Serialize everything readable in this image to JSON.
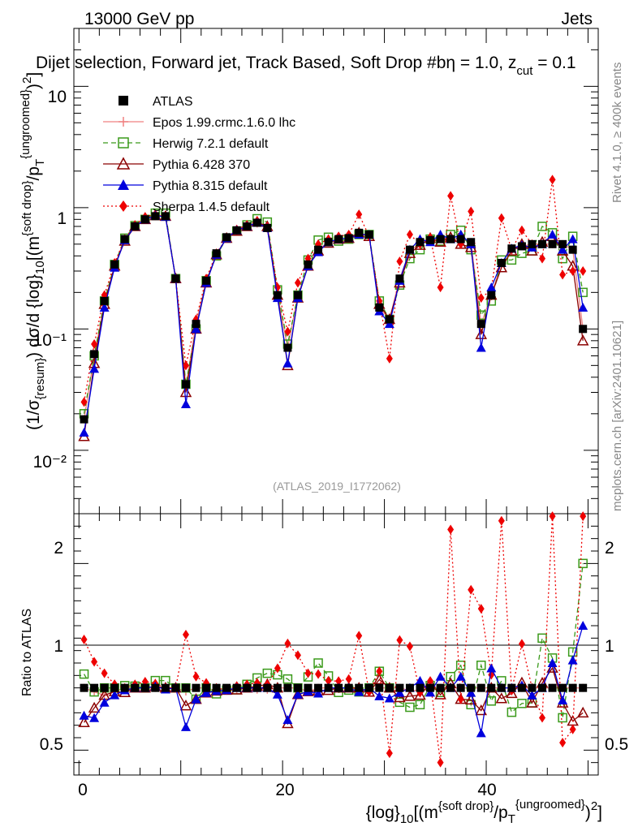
{
  "header": {
    "energy": "13000 GeV pp",
    "process": "Jets",
    "title": "Dijet selection, Forward jet, Track Based, Soft Drop #b",
    "title_tail": "η = 1.0, z",
    "title_sub": "cut",
    "title_end": " = 0.1"
  },
  "side": {
    "rivet": "Rivet 4.1.0, ≥ 400k events",
    "mcplots": "mcplots.cern.ch [arXiv:2401.10621]"
  },
  "analysis_id": "(ATLAS_2019_I1772062)",
  "axes": {
    "y_main": "(1/σ{resum}) dσ/d {log}10[(m{soft drop}/pT{ungroomed})²]",
    "y_ratio": "Ratio to ATLAS",
    "x": "{log}10[(m{soft drop}/pT{ungroomed})²]"
  },
  "legend": [
    {
      "label": "ATLAS",
      "color": "#000000",
      "marker": "square-filled",
      "line": "none"
    },
    {
      "label": "Epos 1.99.crmc.1.6.0 lhc",
      "color": "#f08080",
      "marker": "cross",
      "line": "solid"
    },
    {
      "label": "Herwig 7.2.1 default",
      "color": "#3a9a1a",
      "marker": "square-open",
      "line": "dashed"
    },
    {
      "label": "Pythia 6.428 370",
      "color": "#8b0000",
      "marker": "triangle-open",
      "line": "solid"
    },
    {
      "label": "Pythia 8.315 default",
      "color": "#0000dd",
      "marker": "triangle-filled",
      "line": "solid"
    },
    {
      "label": "Sherpa 1.4.5 default",
      "color": "#ee0000",
      "marker": "diamond",
      "line": "dotted"
    }
  ],
  "chart_data": {
    "type": "line",
    "x_range": [
      -0.5,
      51
    ],
    "y_range_main_log": [
      0.003,
      30
    ],
    "y_range_ratio": [
      0.3,
      2.4
    ],
    "x_ticks": [
      "0",
      "20",
      "40"
    ],
    "y_ticks_main": [
      "10⁻²",
      "10⁻¹",
      "1",
      "10"
    ],
    "y_ticks_ratio": [
      "0.5",
      "1",
      "2"
    ],
    "x": [
      0.5,
      1.5,
      2.5,
      3.5,
      4.5,
      5.5,
      6.5,
      7.5,
      8.5,
      9.5,
      10.5,
      11.5,
      12.5,
      13.5,
      14.5,
      15.5,
      16.5,
      17.5,
      18.5,
      19.5,
      20.5,
      21.5,
      22.5,
      23.5,
      24.5,
      25.5,
      26.5,
      27.5,
      28.5,
      29.5,
      30.5,
      31.5,
      32.5,
      33.5,
      34.5,
      35.5,
      36.5,
      37.5,
      38.5,
      39.5,
      40.5,
      41.5,
      42.5,
      43.5,
      44.5,
      45.5,
      46.5,
      47.5,
      48.5,
      49.5
    ],
    "series": [
      {
        "name": "ATLAS",
        "values": [
          0.018,
          0.062,
          0.17,
          0.34,
          0.55,
          0.7,
          0.8,
          0.85,
          0.85,
          0.26,
          0.035,
          0.11,
          0.25,
          0.42,
          0.57,
          0.65,
          0.7,
          0.75,
          0.68,
          0.19,
          0.07,
          0.19,
          0.34,
          0.45,
          0.52,
          0.55,
          0.56,
          0.62,
          0.6,
          0.15,
          0.12,
          0.26,
          0.45,
          0.52,
          0.54,
          0.55,
          0.55,
          0.55,
          0.52,
          0.11,
          0.19,
          0.35,
          0.46,
          0.48,
          0.5,
          0.5,
          0.5,
          0.5,
          0.45,
          0.1
        ]
      },
      {
        "name": "Epos 1.99.crmc.1.6.0 lhc",
        "values": [
          0.018,
          0.06,
          0.16,
          0.33,
          0.55,
          0.7,
          0.8,
          0.85,
          0.85,
          0.26,
          0.034,
          0.11,
          0.25,
          0.41,
          0.56,
          0.64,
          0.7,
          0.74,
          0.67,
          0.19,
          0.07,
          0.19,
          0.33,
          0.45,
          0.52,
          0.55,
          0.56,
          0.61,
          0.59,
          0.15,
          0.12,
          0.26,
          0.44,
          0.51,
          0.53,
          0.55,
          0.55,
          0.55,
          0.52,
          0.11,
          0.19,
          0.35,
          0.46,
          0.48,
          0.5,
          0.5,
          0.5,
          0.5,
          0.45,
          0.1
        ]
      },
      {
        "name": "Herwig 7.2.1 default",
        "values": [
          0.02,
          0.06,
          0.17,
          0.34,
          0.56,
          0.71,
          0.8,
          0.9,
          0.9,
          0.26,
          0.035,
          0.1,
          0.25,
          0.4,
          0.56,
          0.64,
          0.72,
          0.81,
          0.76,
          0.21,
          0.075,
          0.19,
          0.37,
          0.54,
          0.57,
          0.53,
          0.55,
          0.6,
          0.6,
          0.17,
          0.12,
          0.23,
          0.38,
          0.45,
          0.55,
          0.53,
          0.6,
          0.65,
          0.45,
          0.13,
          0.17,
          0.37,
          0.37,
          0.42,
          0.44,
          0.7,
          0.62,
          0.38,
          0.58,
          0.2
        ]
      },
      {
        "name": "Pythia 6.428 370",
        "values": [
          0.013,
          0.052,
          0.16,
          0.33,
          0.53,
          0.7,
          0.8,
          0.86,
          0.85,
          0.26,
          0.03,
          0.1,
          0.24,
          0.41,
          0.56,
          0.64,
          0.7,
          0.76,
          0.7,
          0.19,
          0.05,
          0.18,
          0.33,
          0.44,
          0.51,
          0.55,
          0.56,
          0.62,
          0.58,
          0.16,
          0.12,
          0.24,
          0.42,
          0.49,
          0.56,
          0.52,
          0.57,
          0.5,
          0.47,
          0.09,
          0.19,
          0.32,
          0.44,
          0.5,
          0.44,
          0.52,
          0.58,
          0.44,
          0.33,
          0.08
        ]
      },
      {
        "name": "Pythia 8.315 default",
        "values": [
          0.014,
          0.047,
          0.15,
          0.32,
          0.54,
          0.7,
          0.8,
          0.86,
          0.84,
          0.26,
          0.024,
          0.1,
          0.24,
          0.41,
          0.56,
          0.65,
          0.7,
          0.75,
          0.68,
          0.18,
          0.052,
          0.18,
          0.33,
          0.43,
          0.52,
          0.55,
          0.56,
          0.6,
          0.6,
          0.14,
          0.11,
          0.25,
          0.45,
          0.55,
          0.52,
          0.6,
          0.55,
          0.6,
          0.5,
          0.07,
          0.22,
          0.35,
          0.46,
          0.49,
          0.47,
          0.5,
          0.6,
          0.45,
          0.55,
          0.15
        ]
      },
      {
        "name": "Sherpa 1.4.5 default",
        "values": [
          0.025,
          0.075,
          0.19,
          0.35,
          0.55,
          0.72,
          0.84,
          0.88,
          0.85,
          0.26,
          0.05,
          0.12,
          0.26,
          0.42,
          0.56,
          0.66,
          0.72,
          0.78,
          0.7,
          0.22,
          0.095,
          0.24,
          0.38,
          0.5,
          0.55,
          0.58,
          0.6,
          0.88,
          0.58,
          0.17,
          0.057,
          0.36,
          0.6,
          0.5,
          0.57,
          0.22,
          1.25,
          0.5,
          0.93,
          0.18,
          0.21,
          0.82,
          0.45,
          0.65,
          0.5,
          0.38,
          1.7,
          0.28,
          0.3,
          0.3
        ]
      }
    ]
  }
}
